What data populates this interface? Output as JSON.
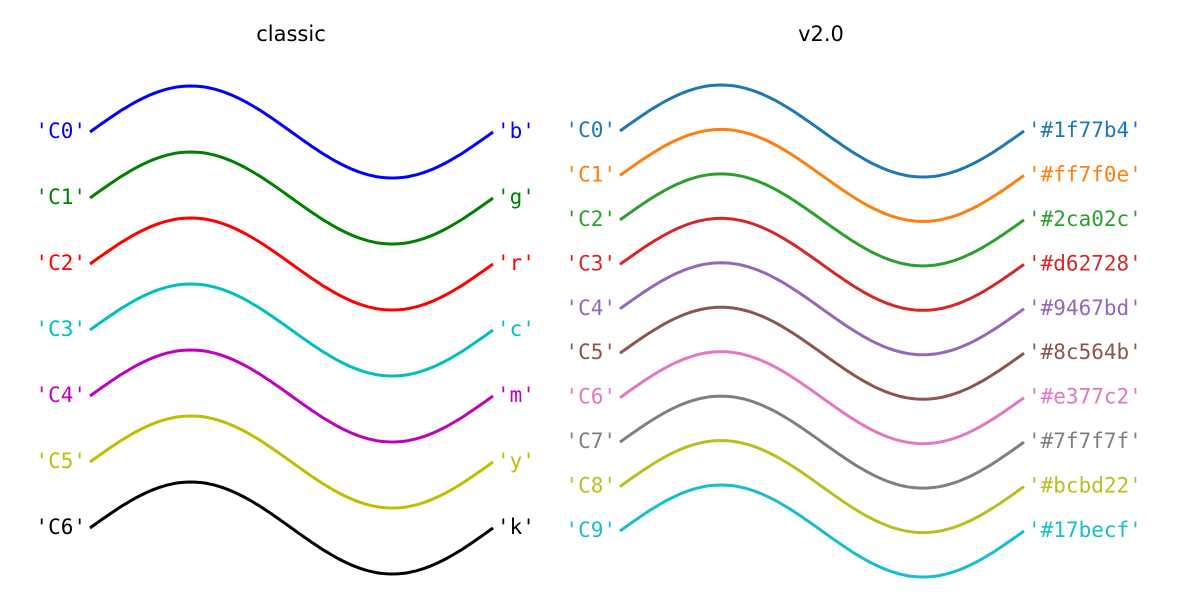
{
  "panels": [
    {
      "title": "classic",
      "items": [
        {
          "name": "'C0'",
          "label": "'b'",
          "color": "#0000ff"
        },
        {
          "name": "'C1'",
          "label": "'g'",
          "color": "#008000"
        },
        {
          "name": "'C2'",
          "label": "'r'",
          "color": "#ff0000"
        },
        {
          "name": "'C3'",
          "label": "'c'",
          "color": "#00bfbf"
        },
        {
          "name": "'C4'",
          "label": "'m'",
          "color": "#bf00bf"
        },
        {
          "name": "'C5'",
          "label": "'y'",
          "color": "#bfbf00"
        },
        {
          "name": "'C6'",
          "label": "'k'",
          "color": "#000000"
        }
      ]
    },
    {
      "title": "v2.0",
      "items": [
        {
          "name": "'C0'",
          "label": "'#1f77b4'",
          "color": "#1f77b4"
        },
        {
          "name": "'C1'",
          "label": "'#ff7f0e'",
          "color": "#ff7f0e"
        },
        {
          "name": "'C2'",
          "label": "'#2ca02c'",
          "color": "#2ca02c"
        },
        {
          "name": "'C3'",
          "label": "'#d62728'",
          "color": "#d62728"
        },
        {
          "name": "'C4'",
          "label": "'#9467bd'",
          "color": "#9467bd"
        },
        {
          "name": "'C5'",
          "label": "'#8c564b'",
          "color": "#8c564b"
        },
        {
          "name": "'C6'",
          "label": "'#e377c2'",
          "color": "#e377c2"
        },
        {
          "name": "'C7'",
          "label": "'#7f7f7f'",
          "color": "#7f7f7f"
        },
        {
          "name": "'C8'",
          "label": "'#bcbd22'",
          "color": "#bcbd22"
        },
        {
          "name": "'C9'",
          "label": "'#17becf'",
          "color": "#17becf"
        }
      ]
    }
  ]
}
